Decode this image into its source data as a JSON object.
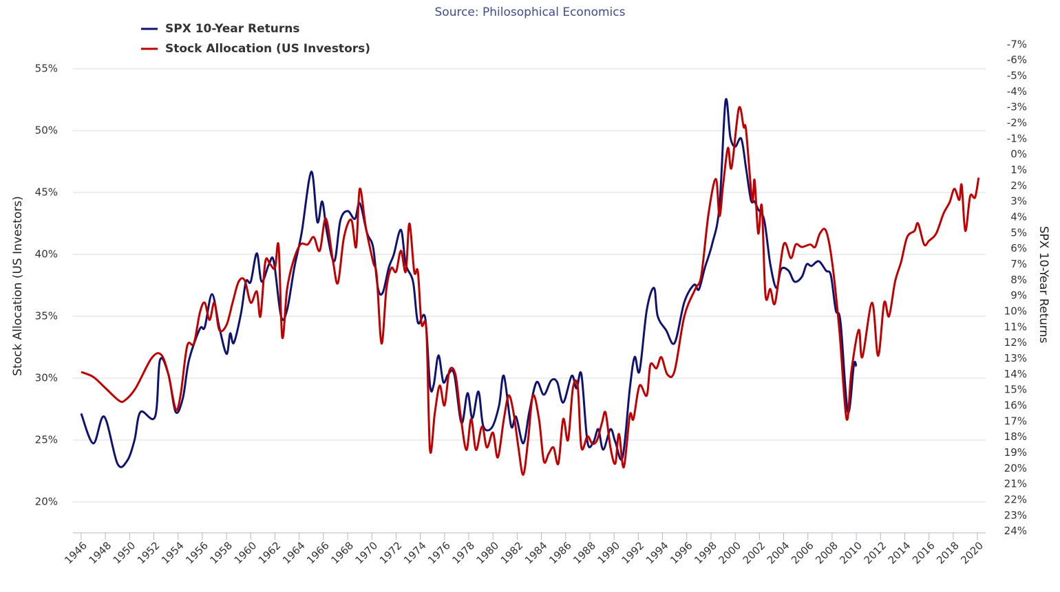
{
  "chart_data": {
    "type": "line",
    "subtitle": "Source: Philosophical Economics",
    "y_label": "Stock Allocation (US Investors)",
    "y2_label": "SPX 10-Year Returns",
    "grid": true,
    "legend": "top-left",
    "xlim": [
      1945.32,
      2020.68
    ],
    "xticks": [
      1946,
      1948,
      1950,
      1952,
      1954,
      1956,
      1958,
      1960,
      1962,
      1964,
      1966,
      1968,
      1970,
      1972,
      1974,
      1976,
      1978,
      1980,
      1982,
      1984,
      1986,
      1988,
      1990,
      1992,
      1994,
      1996,
      1998,
      2000,
      2002,
      2004,
      2006,
      2008,
      2010,
      2012,
      2014,
      2016,
      2018,
      2020
    ],
    "ylim": [
      17.5,
      60
    ],
    "yticks": [
      {
        "value": 20,
        "label": "20%"
      },
      {
        "value": 25,
        "label": "25%"
      },
      {
        "value": 30,
        "label": "30%"
      },
      {
        "value": 35,
        "label": "35%"
      },
      {
        "value": 40,
        "label": "40%"
      },
      {
        "value": 45,
        "label": "45%"
      },
      {
        "value": 50,
        "label": "50%"
      },
      {
        "value": 55,
        "label": "55%"
      }
    ],
    "y2lim": [
      -9.4,
      24.1
    ],
    "y2_reversed": true,
    "y2ticks": [
      {
        "value": -7,
        "label": "-7%"
      },
      {
        "value": -6,
        "label": "-6%"
      },
      {
        "value": -5,
        "label": "-5%"
      },
      {
        "value": -4,
        "label": "-4%"
      },
      {
        "value": -3,
        "label": "-3%"
      },
      {
        "value": -2,
        "label": "-2%"
      },
      {
        "value": -1,
        "label": "-1%"
      },
      {
        "value": 0,
        "label": "0%"
      },
      {
        "value": 1,
        "label": "1%"
      },
      {
        "value": 2,
        "label": "2%"
      },
      {
        "value": 3,
        "label": "3%"
      },
      {
        "value": 4,
        "label": "4%"
      },
      {
        "value": 5,
        "label": "5%"
      },
      {
        "value": 6,
        "label": "6%"
      },
      {
        "value": 7,
        "label": "7%"
      },
      {
        "value": 8,
        "label": "8%"
      },
      {
        "value": 9,
        "label": "9%"
      },
      {
        "value": 10,
        "label": "10%"
      },
      {
        "value": 11,
        "label": "11%"
      },
      {
        "value": 12,
        "label": "12%"
      },
      {
        "value": 13,
        "label": "13%"
      },
      {
        "value": 14,
        "label": "14%"
      },
      {
        "value": 15,
        "label": "15%"
      },
      {
        "value": 16,
        "label": "16%"
      },
      {
        "value": 17,
        "label": "17%"
      },
      {
        "value": 18,
        "label": "18%"
      },
      {
        "value": 19,
        "label": "19%"
      },
      {
        "value": 20,
        "label": "20%"
      },
      {
        "value": 21,
        "label": "21%"
      },
      {
        "value": 22,
        "label": "22%"
      },
      {
        "value": 23,
        "label": "23%"
      },
      {
        "value": 24,
        "label": "24%"
      }
    ],
    "series": [
      {
        "name": "SPX 10-Year Returns",
        "color": "#10136e",
        "axis": "y2",
        "x": [
          1946.0,
          1947.0,
          1947.9,
          1949.0,
          1949.8,
          1950.4,
          1950.9,
          1952.1,
          1952.5,
          1953.2,
          1953.8,
          1954.4,
          1954.9,
          1955.8,
          1956.2,
          1956.8,
          1957.4,
          1958.0,
          1958.3,
          1958.6,
          1959.2,
          1959.6,
          1960.0,
          1960.5,
          1960.9,
          1961.5,
          1961.9,
          1962.5,
          1963.0,
          1963.6,
          1964.2,
          1965.0,
          1965.5,
          1965.9,
          1966.3,
          1966.9,
          1967.4,
          1968.0,
          1968.6,
          1969.0,
          1969.6,
          1970.1,
          1970.5,
          1970.9,
          1971.4,
          1971.8,
          1972.4,
          1972.8,
          1973.4,
          1973.8,
          1974.4,
          1974.8,
          1975.1,
          1975.5,
          1975.9,
          1976.3,
          1976.8,
          1977.4,
          1977.9,
          1978.3,
          1978.8,
          1979.2,
          1979.9,
          1980.5,
          1980.9,
          1981.5,
          1981.9,
          1982.5,
          1983.0,
          1983.6,
          1984.2,
          1984.8,
          1985.3,
          1985.8,
          1986.5,
          1986.9,
          1987.3,
          1987.8,
          1988.3,
          1988.7,
          1989.1,
          1989.7,
          1990.1,
          1990.7,
          1991.3,
          1991.7,
          1992.1,
          1992.7,
          1993.3,
          1993.6,
          1994.3,
          1995.0,
          1995.8,
          1996.6,
          1997.0,
          1997.5,
          1998.1,
          1998.7,
          1999.2,
          1999.6,
          2000.0,
          2000.5,
          2000.9,
          2001.3,
          2001.6,
          2001.9,
          2002.4,
          2002.9,
          2003.4,
          2003.8,
          2004.4,
          2004.9,
          2005.5,
          2005.9,
          2006.3,
          2006.9,
          2007.5,
          2007.9,
          2008.3,
          2008.7,
          2009.3,
          2009.8,
          2010.0
        ],
        "values": [
          16.5,
          18.4,
          16.7,
          19.7,
          19.5,
          18.2,
          16.4,
          16.7,
          13.1,
          14.0,
          16.4,
          15.5,
          13.1,
          11.1,
          11.0,
          8.9,
          11.0,
          12.7,
          11.4,
          12.0,
          10.1,
          8.1,
          8.1,
          6.3,
          8.1,
          7.0,
          6.8,
          10.3,
          9.9,
          7.2,
          5.0,
          1.1,
          4.3,
          3.0,
          5.0,
          6.8,
          4.2,
          3.6,
          4.1,
          3.1,
          5.0,
          5.9,
          8.5,
          8.8,
          7.2,
          6.4,
          4.8,
          7.0,
          8.1,
          10.7,
          10.4,
          14.7,
          14.7,
          12.8,
          14.5,
          14.0,
          14.0,
          17.1,
          15.2,
          16.8,
          15.1,
          17.3,
          17.4,
          16.0,
          14.1,
          17.3,
          16.7,
          18.4,
          16.4,
          14.5,
          15.3,
          14.4,
          14.5,
          15.8,
          14.1,
          14.9,
          14.0,
          18.3,
          18.3,
          17.5,
          18.8,
          17.5,
          18.3,
          19.3,
          14.9,
          12.9,
          13.8,
          9.9,
          8.5,
          10.3,
          11.2,
          12.0,
          9.4,
          8.3,
          8.6,
          7.2,
          5.7,
          3.3,
          -3.4,
          -1.1,
          -0.5,
          -1.0,
          0.9,
          2.9,
          3.0,
          3.5,
          4.2,
          7.0,
          8.5,
          7.3,
          7.4,
          8.1,
          7.8,
          7.0,
          7.1,
          6.8,
          7.4,
          7.7,
          9.9,
          10.7,
          16.4,
          13.4,
          13.5
        ]
      },
      {
        "name": "Stock Allocation (US Investors)",
        "color": "#c00000",
        "axis": "y",
        "x": [
          1946.0,
          1947.0,
          1948.0,
          1949.1,
          1949.6,
          1950.5,
          1951.8,
          1952.6,
          1953.2,
          1953.8,
          1954.2,
          1954.75,
          1955.3,
          1955.8,
          1956.2,
          1956.6,
          1957.0,
          1957.4,
          1958.0,
          1958.5,
          1959.0,
          1959.5,
          1960.0,
          1960.5,
          1960.8,
          1961.2,
          1961.6,
          1962.0,
          1962.3,
          1962.6,
          1963.0,
          1963.5,
          1964.1,
          1964.7,
          1965.2,
          1965.7,
          1966.2,
          1966.8,
          1967.2,
          1967.7,
          1968.3,
          1968.7,
          1969.0,
          1969.5,
          1970.1,
          1970.4,
          1970.8,
          1971.2,
          1971.6,
          1972.0,
          1972.4,
          1972.8,
          1973.1,
          1973.5,
          1973.8,
          1974.1,
          1974.5,
          1974.8,
          1975.2,
          1975.6,
          1976.0,
          1976.4,
          1976.9,
          1977.3,
          1977.8,
          1978.2,
          1978.6,
          1979.1,
          1979.5,
          1980.0,
          1980.4,
          1980.9,
          1981.3,
          1981.7,
          1982.1,
          1982.5,
          1982.9,
          1983.3,
          1983.8,
          1984.2,
          1984.6,
          1985.0,
          1985.4,
          1985.8,
          1986.2,
          1986.6,
          1987.0,
          1987.3,
          1987.8,
          1988.2,
          1988.6,
          1989.0,
          1989.3,
          1989.7,
          1990.1,
          1990.4,
          1990.8,
          1991.3,
          1991.6,
          1992.1,
          1992.7,
          1993.0,
          1993.5,
          1993.9,
          1994.4,
          1995.0,
          1995.8,
          1996.7,
          1997.2,
          1997.8,
          1998.4,
          1998.7,
          1999.0,
          1999.4,
          1999.7,
          2000.3,
          2000.7,
          2000.9,
          2001.4,
          2001.6,
          2001.9,
          2002.2,
          2002.5,
          2002.9,
          2003.3,
          2004.0,
          2004.6,
          2005.0,
          2005.5,
          2006.2,
          2006.6,
          2007.0,
          2007.5,
          2008.0,
          2008.6,
          2009.2,
          2009.6,
          2010.2,
          2010.5,
          2011.3,
          2011.8,
          2012.3,
          2012.7,
          2013.2,
          2013.7,
          2014.2,
          2014.8,
          2015.1,
          2015.6,
          2016.0,
          2016.6,
          2017.2,
          2017.7,
          2018.1,
          2018.5,
          2018.7,
          2019.0,
          2019.4,
          2019.8,
          2020.1
        ],
        "values": [
          30.5,
          30.1,
          29.2,
          28.2,
          28.2,
          29.2,
          31.6,
          31.9,
          30.3,
          27.5,
          28.6,
          32.6,
          32.8,
          35.3,
          36.1,
          34.7,
          36.1,
          33.9,
          34.3,
          36.1,
          37.8,
          37.9,
          36.1,
          37.0,
          35.0,
          39.4,
          39.2,
          38.9,
          40.7,
          33.3,
          37.2,
          39.4,
          40.8,
          40.8,
          41.4,
          40.3,
          42.9,
          39.4,
          37.7,
          41.4,
          42.8,
          40.6,
          45.3,
          42.2,
          39.4,
          38.3,
          32.8,
          37.2,
          38.9,
          38.6,
          40.3,
          38.6,
          42.5,
          38.6,
          38.6,
          34.4,
          33.9,
          24.2,
          27.2,
          29.4,
          27.8,
          30.6,
          30.3,
          27.2,
          24.2,
          26.7,
          24.2,
          26.1,
          24.4,
          25.6,
          23.6,
          26.7,
          28.6,
          27.2,
          24.4,
          22.2,
          25.0,
          28.6,
          26.7,
          23.3,
          23.9,
          24.4,
          23.1,
          26.7,
          25.0,
          29.2,
          29.3,
          24.4,
          25.3,
          24.7,
          25.0,
          26.4,
          27.2,
          24.4,
          23.1,
          25.5,
          22.8,
          27.0,
          26.7,
          29.4,
          28.6,
          31.1,
          30.8,
          31.7,
          30.3,
          30.6,
          35.0,
          37.2,
          38.3,
          43.3,
          46.1,
          43.1,
          45.6,
          48.6,
          47.0,
          51.8,
          50.3,
          50.0,
          44.4,
          46.0,
          41.7,
          43.9,
          36.7,
          37.2,
          36.1,
          40.8,
          39.7,
          40.8,
          40.6,
          40.8,
          40.6,
          41.7,
          41.9,
          39.4,
          33.9,
          26.7,
          30.6,
          33.9,
          31.7,
          36.1,
          31.8,
          36.1,
          35.0,
          37.8,
          39.4,
          41.4,
          41.9,
          42.5,
          40.8,
          41.1,
          41.7,
          43.3,
          44.2,
          45.3,
          44.4,
          45.6,
          41.9,
          44.7,
          44.6,
          46.2
        ]
      }
    ]
  }
}
